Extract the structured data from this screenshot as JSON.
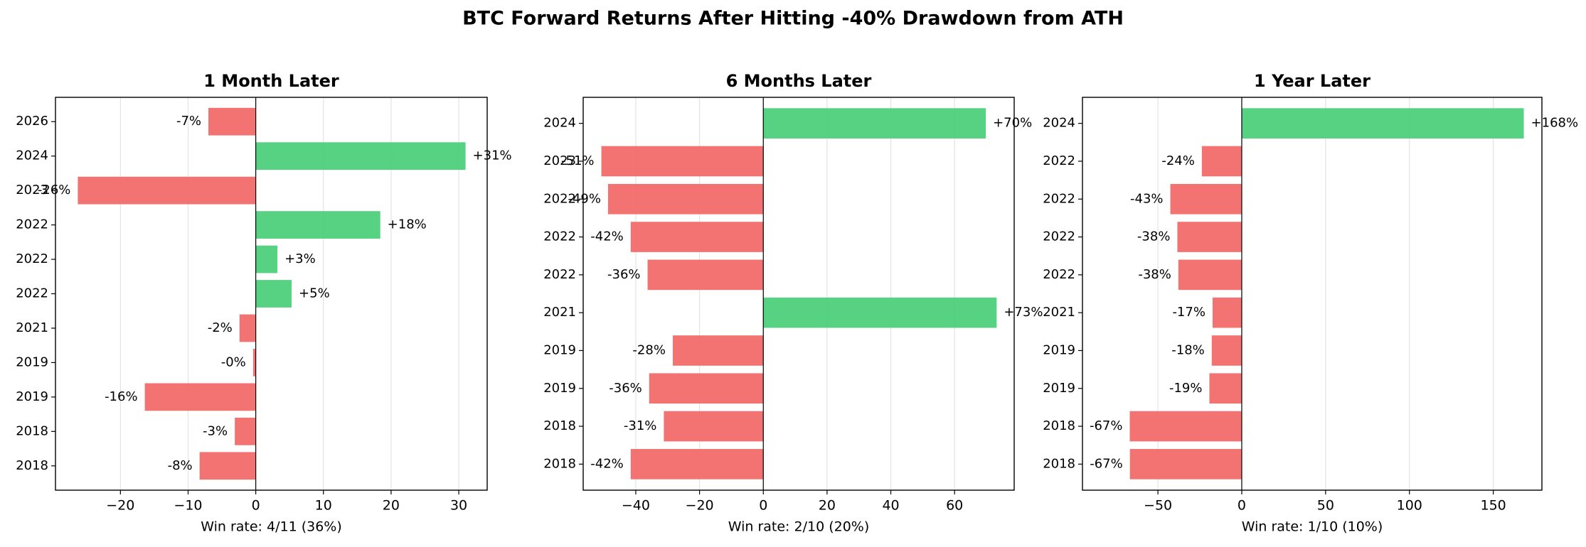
{
  "title": "BTC Forward Returns After Hitting -40% Drawdown from ATH",
  "chart_data": [
    {
      "type": "bar",
      "orientation": "horizontal",
      "title": "1 Month Later",
      "xlabel": "Win rate: 4/11 (36%)",
      "categories": [
        "2026",
        "2024",
        "2023",
        "2022",
        "2022",
        "2022",
        "2021",
        "2019",
        "2019",
        "2018",
        "2018"
      ],
      "values": [
        -7.0,
        31.0,
        -26.3,
        18.4,
        3.2,
        5.3,
        -2.4,
        -0.4,
        -16.4,
        -3.1,
        -8.3
      ],
      "value_labels": [
        "-7%",
        "+31%",
        "-26%",
        "+18%",
        "+3%",
        "+5%",
        "-2%",
        "-0%",
        "-16%",
        "-3%",
        "-8%"
      ],
      "color_positive": "#4ecf7b",
      "color_negative": "#f26b6b",
      "xlim": [
        -29.6,
        34.2
      ],
      "xticks": [
        {
          "value": -20,
          "label": "−20"
        },
        {
          "value": -10,
          "label": "−10"
        },
        0,
        10,
        20,
        30
      ],
      "grid": true
    },
    {
      "type": "bar",
      "orientation": "horizontal",
      "title": "6 Months Later",
      "xlabel": "Win rate: 2/10 (20%)",
      "categories": [
        "2024",
        "2023",
        "2022",
        "2022",
        "2022",
        "2021",
        "2019",
        "2019",
        "2018",
        "2018"
      ],
      "values": [
        69.8,
        -50.8,
        -48.7,
        -41.6,
        -36.3,
        73.2,
        -28.4,
        -35.8,
        -31.2,
        -41.6
      ],
      "value_labels": [
        "+70%",
        "-51%",
        "-49%",
        "-42%",
        "-36%",
        "+73%",
        "-28%",
        "-36%",
        "-31%",
        "-42%"
      ],
      "color_positive": "#4ecf7b",
      "color_negative": "#f26b6b",
      "xlim": [
        -56.5,
        78.7
      ],
      "xticks": [
        {
          "value": -40,
          "label": "−40"
        },
        {
          "value": -20,
          "label": "−20"
        },
        0,
        20,
        40,
        60
      ],
      "grid": true
    },
    {
      "type": "bar",
      "orientation": "horizontal",
      "title": "1 Year Later",
      "xlabel": "Win rate: 1/10 (10%)",
      "categories": [
        "2024",
        "2022",
        "2022",
        "2022",
        "2022",
        "2021",
        "2019",
        "2019",
        "2018",
        "2018"
      ],
      "values": [
        168.2,
        -23.8,
        -42.6,
        -38.4,
        -37.8,
        -17.4,
        -17.9,
        -19.3,
        -66.8,
        -66.7
      ],
      "value_labels": [
        "+168%",
        "-24%",
        "-43%",
        "-38%",
        "-38%",
        "-17%",
        "-18%",
        "-19%",
        "-67%",
        "-67%"
      ],
      "color_positive": "#4ecf7b",
      "color_negative": "#f26b6b",
      "xlim": [
        -95,
        179
      ],
      "xticks": [
        {
          "value": -50,
          "label": "−50"
        },
        0,
        50,
        100,
        150
      ],
      "grid": true
    }
  ]
}
